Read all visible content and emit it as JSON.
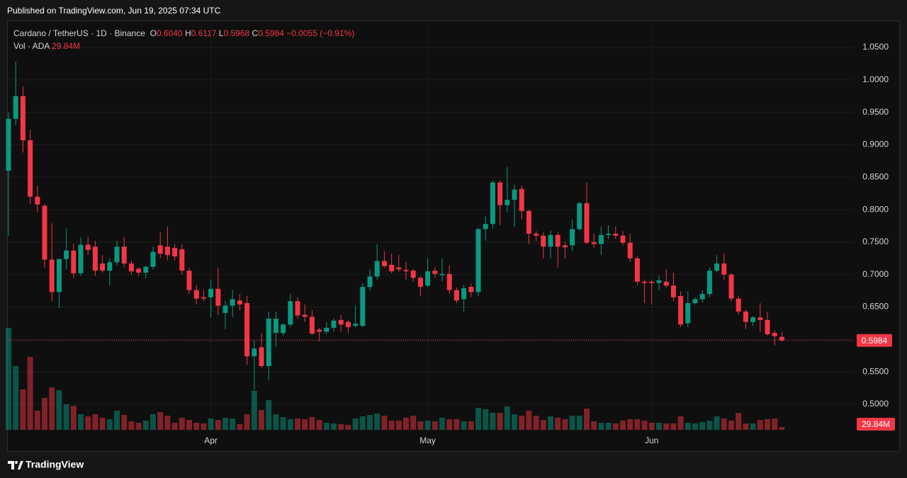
{
  "header": {
    "published": "Published on TradingView.com, Jun 19, 2025 07:34 UTC"
  },
  "footer": {
    "brand": "TradingView"
  },
  "chart_data": {
    "type": "candlestick",
    "title": "Cardano / TetherUS · 1D · Binance",
    "legend": [
      {
        "key": "O",
        "value": 0.604,
        "label": "0.6040"
      },
      {
        "key": "H",
        "value": 0.6117,
        "label": "0.6117"
      },
      {
        "key": "L",
        "value": 0.5968,
        "label": "0.5968"
      },
      {
        "key": "C",
        "value": 0.5984,
        "label": "0.5984"
      }
    ],
    "change": {
      "value": -0.0055,
      "label": "−0.0055"
    },
    "change_pct": {
      "value": -0.91,
      "label": "(−0.91%)"
    },
    "volume_title": "Vol · ADA",
    "volume_label": "29.84M",
    "up_color": "#089981",
    "down_color": "#f23645",
    "grid": true,
    "categories": [
      null,
      null,
      null,
      null,
      null,
      null,
      null,
      null,
      null,
      null,
      null,
      null,
      null,
      null,
      null,
      null,
      null,
      null,
      null,
      null,
      null,
      null,
      null,
      null,
      null,
      null,
      null,
      null,
      "Apr",
      null,
      null,
      null,
      null,
      null,
      null,
      null,
      null,
      null,
      null,
      null,
      null,
      null,
      null,
      null,
      null,
      null,
      null,
      null,
      null,
      null,
      null,
      null,
      null,
      null,
      null,
      null,
      null,
      null,
      "May",
      null,
      null,
      null,
      null,
      null,
      null,
      null,
      null,
      null,
      null,
      null,
      null,
      null,
      null,
      null,
      null,
      null,
      null,
      null,
      null,
      null,
      null,
      null,
      null,
      null,
      null,
      null,
      null,
      null,
      null,
      "Jun",
      null,
      null,
      null,
      null,
      null,
      null,
      null,
      null,
      null,
      null,
      null,
      null,
      null,
      null,
      null,
      null,
      null,
      null
    ],
    "open": [
      0.86,
      0.94,
      0.975,
      0.907,
      0.82,
      0.806,
      0.723,
      0.673,
      0.724,
      0.737,
      0.702,
      0.746,
      0.743,
      0.717,
      0.706,
      0.719,
      0.743,
      0.717,
      0.709,
      0.703,
      0.712,
      0.745,
      0.743,
      0.741,
      0.739,
      0.706,
      0.676,
      0.665,
      0.665,
      0.678,
      0.641,
      0.652,
      0.66,
      0.656,
      0.574,
      0.588,
      0.559,
      0.61,
      0.61,
      0.623,
      0.659,
      0.638,
      0.635,
      0.615,
      0.612,
      0.618,
      0.63,
      0.627,
      0.621,
      0.621,
      0.681,
      0.697,
      0.721,
      0.715,
      0.711,
      0.707,
      0.706,
      0.695,
      0.683,
      0.706,
      0.699,
      0.701,
      0.676,
      0.662,
      0.681,
      0.673,
      0.77,
      0.778,
      0.842,
      0.807,
      0.815,
      0.832,
      0.798,
      0.763,
      0.76,
      0.743,
      0.761,
      0.745,
      0.745,
      0.77,
      0.81,
      0.75,
      0.747,
      0.761,
      0.763,
      0.76,
      0.749,
      0.725,
      0.689,
      0.689,
      0.687,
      0.689,
      0.683,
      0.667,
      0.625,
      0.656,
      0.662,
      0.67,
      0.706,
      0.717,
      0.7,
      0.663,
      0.643,
      0.627,
      0.634,
      0.63,
      0.61,
      0.604
    ],
    "high": [
      0.95,
      1.028,
      0.99,
      0.923,
      0.837,
      0.809,
      0.779,
      0.724,
      0.771,
      0.747,
      0.758,
      0.758,
      0.752,
      0.73,
      0.725,
      0.752,
      0.758,
      0.722,
      0.711,
      0.714,
      0.743,
      0.765,
      0.774,
      0.747,
      0.747,
      0.711,
      0.684,
      0.676,
      0.692,
      0.711,
      0.659,
      0.676,
      0.67,
      0.667,
      0.599,
      0.61,
      0.643,
      0.643,
      0.625,
      0.67,
      0.665,
      0.654,
      0.645,
      0.618,
      0.627,
      0.632,
      0.638,
      0.63,
      0.652,
      0.687,
      0.708,
      0.747,
      0.736,
      0.732,
      0.73,
      0.719,
      0.709,
      0.697,
      0.725,
      0.711,
      0.725,
      0.714,
      0.68,
      0.684,
      0.686,
      0.772,
      0.79,
      0.845,
      0.845,
      0.866,
      0.839,
      0.837,
      0.8,
      0.767,
      0.765,
      0.768,
      0.765,
      0.75,
      0.785,
      0.812,
      0.842,
      0.763,
      0.774,
      0.776,
      0.774,
      0.767,
      0.763,
      0.728,
      0.692,
      0.692,
      0.698,
      0.708,
      0.703,
      0.674,
      0.674,
      0.665,
      0.676,
      0.711,
      0.73,
      0.732,
      0.702,
      0.667,
      0.646,
      0.636,
      0.656,
      0.643,
      0.614,
      0.6117
    ],
    "low": [
      0.76,
      0.93,
      0.888,
      0.809,
      0.796,
      0.711,
      0.659,
      0.648,
      0.708,
      0.695,
      0.698,
      0.73,
      0.698,
      0.703,
      0.683,
      0.714,
      0.711,
      0.7,
      0.698,
      0.694,
      0.708,
      0.725,
      0.722,
      0.722,
      0.7,
      0.67,
      0.654,
      0.659,
      0.634,
      0.638,
      0.616,
      0.634,
      0.645,
      0.561,
      0.521,
      0.556,
      0.537,
      0.588,
      0.606,
      0.619,
      0.632,
      0.627,
      0.607,
      0.597,
      0.608,
      0.612,
      0.612,
      0.61,
      0.619,
      0.619,
      0.676,
      0.692,
      0.711,
      0.702,
      0.705,
      0.692,
      0.689,
      0.667,
      0.681,
      0.695,
      0.69,
      0.67,
      0.656,
      0.643,
      0.665,
      0.667,
      0.752,
      0.771,
      0.776,
      0.796,
      0.774,
      0.785,
      0.747,
      0.752,
      0.725,
      0.725,
      0.711,
      0.725,
      0.736,
      0.768,
      0.747,
      0.741,
      0.73,
      0.755,
      0.755,
      0.745,
      0.719,
      0.684,
      0.656,
      0.654,
      0.676,
      0.68,
      0.659,
      0.619,
      0.619,
      0.654,
      0.657,
      0.665,
      0.703,
      0.692,
      0.659,
      0.638,
      0.616,
      0.621,
      0.612,
      0.606,
      0.591,
      0.5968
    ],
    "close": [
      0.94,
      0.975,
      0.907,
      0.82,
      0.808,
      0.723,
      0.673,
      0.724,
      0.737,
      0.702,
      0.746,
      0.738,
      0.706,
      0.706,
      0.719,
      0.743,
      0.717,
      0.705,
      0.703,
      0.712,
      0.735,
      0.732,
      0.73,
      0.728,
      0.706,
      0.676,
      0.663,
      0.663,
      0.678,
      0.652,
      0.652,
      0.662,
      0.654,
      0.574,
      0.586,
      0.559,
      0.632,
      0.632,
      0.623,
      0.659,
      0.637,
      0.635,
      0.609,
      0.612,
      0.618,
      0.629,
      0.623,
      0.619,
      0.624,
      0.681,
      0.697,
      0.721,
      0.713,
      0.705,
      0.708,
      0.705,
      0.695,
      0.681,
      0.705,
      0.701,
      0.701,
      0.676,
      0.66,
      0.679,
      0.673,
      0.77,
      0.778,
      0.842,
      0.807,
      0.815,
      0.831,
      0.798,
      0.763,
      0.76,
      0.743,
      0.761,
      0.743,
      0.742,
      0.77,
      0.81,
      0.749,
      0.747,
      0.761,
      0.763,
      0.76,
      0.749,
      0.725,
      0.689,
      0.687,
      0.687,
      0.691,
      0.683,
      0.665,
      0.623,
      0.656,
      0.662,
      0.67,
      0.706,
      0.717,
      0.7,
      0.663,
      0.643,
      0.627,
      0.634,
      0.63,
      0.608,
      0.605,
      0.5984
    ],
    "volume": [
      1080,
      675,
      428,
      773,
      203,
      338,
      450,
      420,
      270,
      255,
      165,
      143,
      165,
      128,
      113,
      203,
      158,
      90,
      75,
      98,
      165,
      188,
      150,
      75,
      128,
      105,
      75,
      68,
      120,
      105,
      128,
      120,
      60,
      165,
      413,
      210,
      315,
      165,
      135,
      113,
      120,
      113,
      135,
      105,
      75,
      68,
      60,
      53,
      120,
      143,
      158,
      173,
      150,
      98,
      98,
      128,
      150,
      90,
      98,
      90,
      128,
      113,
      113,
      90,
      90,
      233,
      218,
      180,
      180,
      248,
      165,
      150,
      203,
      150,
      105,
      143,
      128,
      113,
      150,
      150,
      225,
      90,
      75,
      75,
      68,
      98,
      113,
      113,
      98,
      75,
      75,
      68,
      68,
      143,
      75,
      68,
      83,
      98,
      143,
      120,
      98,
      180,
      68,
      68,
      105,
      113,
      120,
      29.84
    ],
    "ylim": [
      0.4574,
      1.0904
    ],
    "yticks": [
      {
        "value": 0.5,
        "label": "0.5000"
      },
      {
        "value": 0.55,
        "label": "0.5500"
      },
      {
        "value": 0.6,
        "label": "0.6000"
      },
      {
        "value": 0.65,
        "label": "0.6500"
      },
      {
        "value": 0.7,
        "label": "0.7000"
      },
      {
        "value": 0.75,
        "label": "0.7500"
      },
      {
        "value": 0.8,
        "label": "0.8000"
      },
      {
        "value": 0.85,
        "label": "0.8500"
      },
      {
        "value": 0.9,
        "label": "0.9000"
      },
      {
        "value": 0.95,
        "label": "0.9500"
      },
      {
        "value": 1.0,
        "label": "1.0000"
      },
      {
        "value": 1.05,
        "label": "1.0500"
      }
    ]
  }
}
